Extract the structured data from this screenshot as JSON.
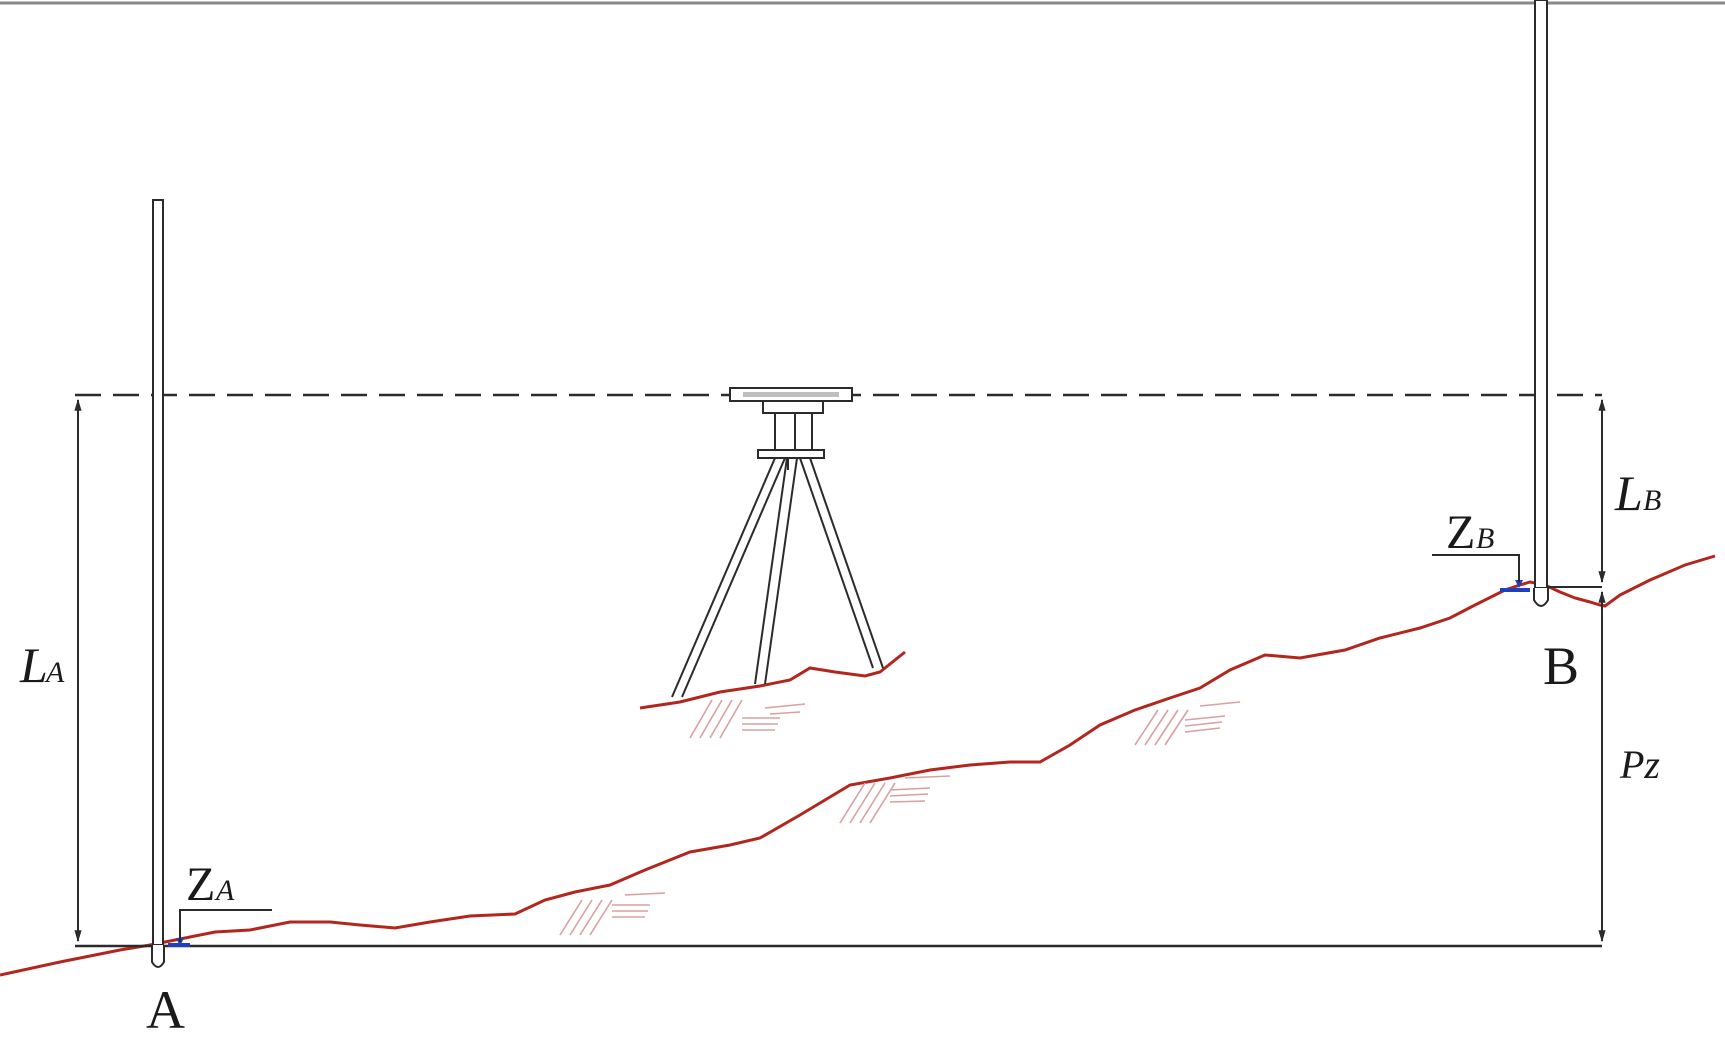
{
  "labels": {
    "point_a": "A",
    "point_b": "B",
    "reading_a_main": "L",
    "reading_a_sub": "A",
    "reading_b_main": "L",
    "reading_b_sub": "B",
    "elevation_a_main": "Z",
    "elevation_a_sub": "A",
    "elevation_b_main": "Z",
    "elevation_b_sub": "B",
    "height_difference": "Pz"
  },
  "colors": {
    "line": "#2b2b2b",
    "ground": "#b3261e",
    "hatch": "#d9a0a0",
    "benchmark": "#1f3fbf",
    "background": "#ffffff"
  }
}
